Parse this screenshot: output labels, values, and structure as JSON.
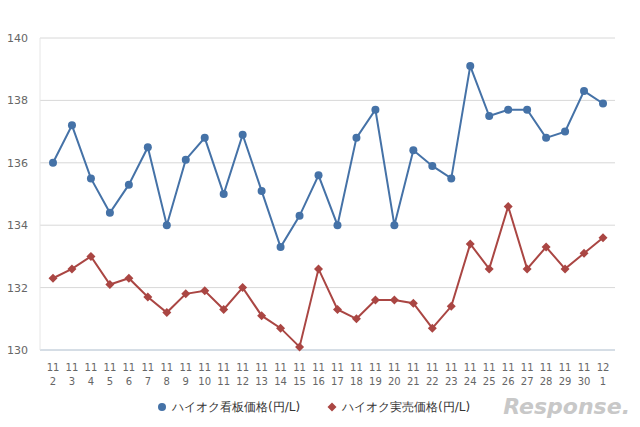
{
  "chart_data": {
    "type": "line",
    "categories": [
      "11\n2",
      "11\n3",
      "11\n4",
      "11\n5",
      "11\n6",
      "11\n7",
      "11\n8",
      "11\n9",
      "11\n10",
      "11\n11",
      "11\n12",
      "11\n13",
      "11\n14",
      "11\n15",
      "11\n16",
      "11\n17",
      "11\n18",
      "11\n19",
      "11\n20",
      "11\n21",
      "11\n22",
      "11\n23",
      "11\n24",
      "11\n25",
      "11\n26",
      "11\n27",
      "11\n28",
      "11\n29",
      "11\n30",
      "12\n1"
    ],
    "series": [
      {
        "name": "ハイオク看板価格(円/L)",
        "color": "#4572a7",
        "marker": "circle",
        "values": [
          136.0,
          137.2,
          135.5,
          134.4,
          135.3,
          136.5,
          134.0,
          136.1,
          136.8,
          135.0,
          136.9,
          135.1,
          133.3,
          134.3,
          135.6,
          134.0,
          136.8,
          137.7,
          134.0,
          136.4,
          135.9,
          135.5,
          139.1,
          137.5,
          137.7,
          137.7,
          136.8,
          137.0,
          138.3,
          137.9
        ]
      },
      {
        "name": "ハイオク実売価格(円/L)",
        "color": "#aa4643",
        "marker": "diamond",
        "values": [
          132.3,
          132.6,
          133.0,
          132.1,
          132.3,
          131.7,
          131.2,
          131.8,
          131.9,
          131.3,
          132.0,
          131.1,
          130.7,
          130.1,
          132.6,
          131.3,
          131.0,
          131.6,
          131.6,
          131.5,
          130.7,
          131.4,
          133.4,
          132.6,
          134.6,
          132.6,
          133.3,
          132.6,
          133.1,
          133.6
        ]
      }
    ],
    "ylim": [
      130,
      140
    ],
    "yticks": [
      130,
      132,
      134,
      136,
      138,
      140
    ],
    "grid": true,
    "legend": "bottom",
    "source": "Response."
  }
}
